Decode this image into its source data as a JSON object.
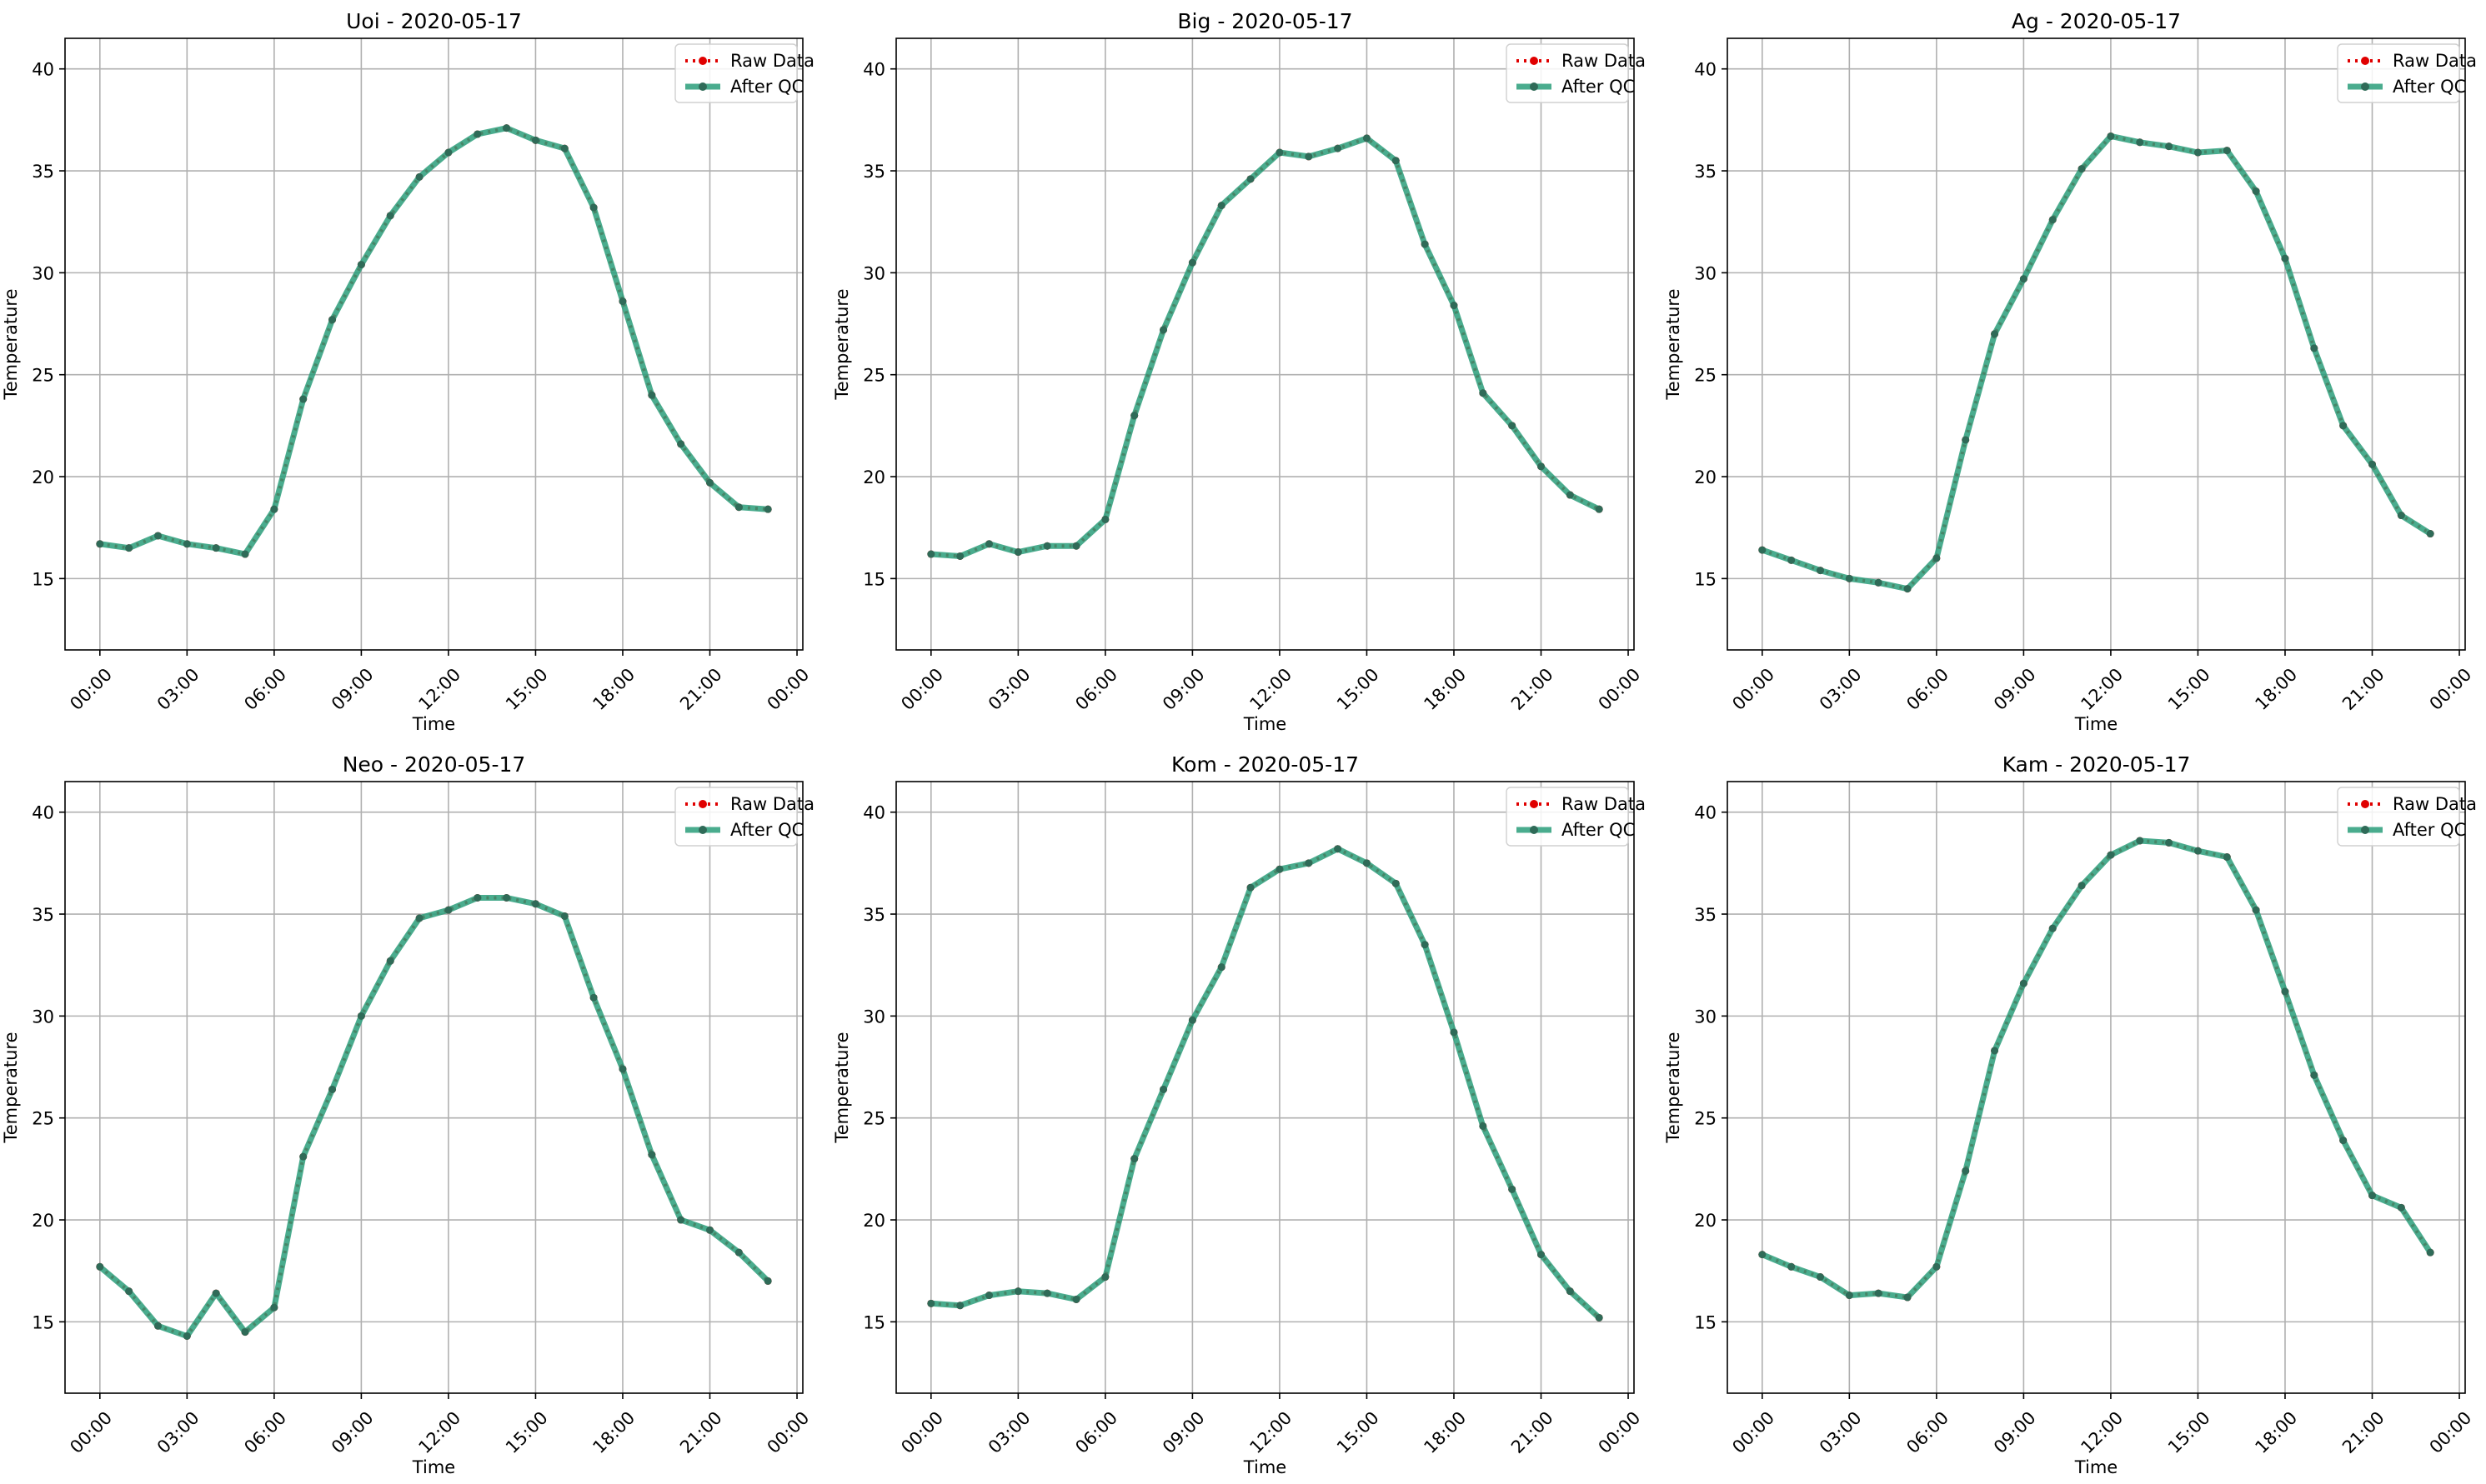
{
  "chart_data": [
    {
      "type": "line",
      "title": "Uoi - 2020-05-17",
      "xlabel": "Time",
      "ylabel": "Temperature",
      "x_ticks": [
        "00:00",
        "03:00",
        "06:00",
        "09:00",
        "12:00",
        "15:00",
        "18:00",
        "21:00",
        "00:00"
      ],
      "y_ticks": [
        15,
        20,
        25,
        30,
        35,
        40
      ],
      "ylim": [
        11.5,
        41.5
      ],
      "xlim_hours": [
        -1.2,
        24.2
      ],
      "grid": true,
      "legend_position": "top-right",
      "hours": [
        0,
        1,
        2,
        3,
        4,
        5,
        6,
        7,
        8,
        9,
        10,
        11,
        12,
        13,
        14,
        15,
        16,
        17,
        18,
        19,
        20,
        21,
        22,
        23
      ],
      "series": [
        {
          "name": "Raw Data",
          "color": "#e00000",
          "values": [
            16.7,
            16.5,
            17.1,
            16.7,
            16.5,
            16.2,
            18.4,
            23.8,
            27.7,
            30.4,
            32.8,
            34.7,
            35.9,
            36.8,
            37.1,
            36.5,
            36.1,
            33.2,
            28.6,
            24.0,
            21.6,
            19.7,
            18.5,
            18.4
          ]
        },
        {
          "name": "After QC",
          "color": "#2a9d7a",
          "values": [
            16.7,
            16.5,
            17.1,
            16.7,
            16.5,
            16.2,
            18.4,
            23.8,
            27.7,
            30.4,
            32.8,
            34.7,
            35.9,
            36.8,
            37.1,
            36.5,
            36.1,
            33.2,
            28.6,
            24.0,
            21.6,
            19.7,
            18.5,
            18.4
          ]
        }
      ]
    },
    {
      "type": "line",
      "title": "Big - 2020-05-17",
      "xlabel": "Time",
      "ylabel": "Temperature",
      "x_ticks": [
        "00:00",
        "03:00",
        "06:00",
        "09:00",
        "12:00",
        "15:00",
        "18:00",
        "21:00",
        "00:00"
      ],
      "y_ticks": [
        15,
        20,
        25,
        30,
        35,
        40
      ],
      "ylim": [
        11.5,
        41.5
      ],
      "xlim_hours": [
        -1.2,
        24.2
      ],
      "grid": true,
      "legend_position": "top-right",
      "hours": [
        0,
        1,
        2,
        3,
        4,
        5,
        6,
        7,
        8,
        9,
        10,
        11,
        12,
        13,
        14,
        15,
        16,
        17,
        18,
        19,
        20,
        21,
        22,
        23
      ],
      "series": [
        {
          "name": "Raw Data",
          "color": "#e00000",
          "values": [
            16.2,
            16.1,
            16.7,
            16.3,
            16.6,
            16.6,
            17.9,
            23.0,
            27.2,
            30.5,
            33.3,
            34.6,
            35.9,
            35.7,
            36.1,
            36.6,
            35.5,
            31.4,
            28.4,
            24.1,
            22.5,
            20.5,
            19.1,
            18.4
          ]
        },
        {
          "name": "After QC",
          "color": "#2a9d7a",
          "values": [
            16.2,
            16.1,
            16.7,
            16.3,
            16.6,
            16.6,
            17.9,
            23.0,
            27.2,
            30.5,
            33.3,
            34.6,
            35.9,
            35.7,
            36.1,
            36.6,
            35.5,
            31.4,
            28.4,
            24.1,
            22.5,
            20.5,
            19.1,
            18.4
          ]
        }
      ]
    },
    {
      "type": "line",
      "title": "Ag - 2020-05-17",
      "xlabel": "Time",
      "ylabel": "Temperature",
      "x_ticks": [
        "00:00",
        "03:00",
        "06:00",
        "09:00",
        "12:00",
        "15:00",
        "18:00",
        "21:00",
        "00:00"
      ],
      "y_ticks": [
        15,
        20,
        25,
        30,
        35,
        40
      ],
      "ylim": [
        11.5,
        41.5
      ],
      "xlim_hours": [
        -1.2,
        24.2
      ],
      "grid": true,
      "legend_position": "top-right",
      "hours": [
        0,
        1,
        2,
        3,
        4,
        5,
        6,
        7,
        8,
        9,
        10,
        11,
        12,
        13,
        14,
        15,
        16,
        17,
        18,
        19,
        20,
        21,
        22,
        23
      ],
      "series": [
        {
          "name": "Raw Data",
          "color": "#e00000",
          "values": [
            16.4,
            15.9,
            15.4,
            15.0,
            14.8,
            14.5,
            16.0,
            21.8,
            27.0,
            29.7,
            32.6,
            35.1,
            36.7,
            36.4,
            36.2,
            35.9,
            36.0,
            34.0,
            30.7,
            26.3,
            22.5,
            20.6,
            18.1,
            17.2
          ]
        },
        {
          "name": "After QC",
          "color": "#2a9d7a",
          "values": [
            16.4,
            15.9,
            15.4,
            15.0,
            14.8,
            14.5,
            16.0,
            21.8,
            27.0,
            29.7,
            32.6,
            35.1,
            36.7,
            36.4,
            36.2,
            35.9,
            36.0,
            34.0,
            30.7,
            26.3,
            22.5,
            20.6,
            18.1,
            17.2
          ]
        }
      ]
    },
    {
      "type": "line",
      "title": "Neo - 2020-05-17",
      "xlabel": "Time",
      "ylabel": "Temperature",
      "x_ticks": [
        "00:00",
        "03:00",
        "06:00",
        "09:00",
        "12:00",
        "15:00",
        "18:00",
        "21:00",
        "00:00"
      ],
      "y_ticks": [
        15,
        20,
        25,
        30,
        35,
        40
      ],
      "ylim": [
        11.5,
        41.5
      ],
      "xlim_hours": [
        -1.2,
        24.2
      ],
      "grid": true,
      "legend_position": "top-right",
      "hours": [
        0,
        1,
        2,
        3,
        4,
        5,
        6,
        7,
        8,
        9,
        10,
        11,
        12,
        13,
        14,
        15,
        16,
        17,
        18,
        19,
        20,
        21,
        22,
        23
      ],
      "series": [
        {
          "name": "Raw Data",
          "color": "#e00000",
          "values": [
            17.7,
            16.5,
            14.8,
            14.3,
            16.4,
            14.5,
            15.7,
            23.1,
            26.4,
            30.0,
            32.7,
            34.8,
            35.2,
            35.8,
            35.8,
            35.5,
            34.9,
            30.9,
            27.4,
            23.2,
            20.0,
            19.5,
            18.4,
            17.0
          ]
        },
        {
          "name": "After QC",
          "color": "#2a9d7a",
          "values": [
            17.7,
            16.5,
            14.8,
            14.3,
            16.4,
            14.5,
            15.7,
            23.1,
            26.4,
            30.0,
            32.7,
            34.8,
            35.2,
            35.8,
            35.8,
            35.5,
            34.9,
            30.9,
            27.4,
            23.2,
            20.0,
            19.5,
            18.4,
            17.0
          ]
        }
      ]
    },
    {
      "type": "line",
      "title": "Kom - 2020-05-17",
      "xlabel": "Time",
      "ylabel": "Temperature",
      "x_ticks": [
        "00:00",
        "03:00",
        "06:00",
        "09:00",
        "12:00",
        "15:00",
        "18:00",
        "21:00",
        "00:00"
      ],
      "y_ticks": [
        15,
        20,
        25,
        30,
        35,
        40
      ],
      "ylim": [
        11.5,
        41.5
      ],
      "xlim_hours": [
        -1.2,
        24.2
      ],
      "grid": true,
      "legend_position": "top-right",
      "hours": [
        0,
        1,
        2,
        3,
        4,
        5,
        6,
        7,
        8,
        9,
        10,
        11,
        12,
        13,
        14,
        15,
        16,
        17,
        18,
        19,
        20,
        21,
        22,
        23
      ],
      "series": [
        {
          "name": "Raw Data",
          "color": "#e00000",
          "values": [
            15.9,
            15.8,
            16.3,
            16.5,
            16.4,
            16.1,
            17.2,
            23.0,
            26.4,
            29.8,
            32.4,
            36.3,
            37.2,
            37.5,
            38.2,
            37.5,
            36.5,
            33.5,
            29.2,
            24.6,
            21.5,
            18.3,
            16.5,
            15.2
          ]
        },
        {
          "name": "After QC",
          "color": "#2a9d7a",
          "values": [
            15.9,
            15.8,
            16.3,
            16.5,
            16.4,
            16.1,
            17.2,
            23.0,
            26.4,
            29.8,
            32.4,
            36.3,
            37.2,
            37.5,
            38.2,
            37.5,
            36.5,
            33.5,
            29.2,
            24.6,
            21.5,
            18.3,
            16.5,
            15.2
          ]
        }
      ]
    },
    {
      "type": "line",
      "title": "Kam - 2020-05-17",
      "xlabel": "Time",
      "ylabel": "Temperature",
      "x_ticks": [
        "00:00",
        "03:00",
        "06:00",
        "09:00",
        "12:00",
        "15:00",
        "18:00",
        "21:00",
        "00:00"
      ],
      "y_ticks": [
        15,
        20,
        25,
        30,
        35,
        40
      ],
      "ylim": [
        11.5,
        41.5
      ],
      "xlim_hours": [
        -1.2,
        24.2
      ],
      "grid": true,
      "legend_position": "top-right",
      "hours": [
        0,
        1,
        2,
        3,
        4,
        5,
        6,
        7,
        8,
        9,
        10,
        11,
        12,
        13,
        14,
        15,
        16,
        17,
        18,
        19,
        20,
        21,
        22,
        23
      ],
      "series": [
        {
          "name": "Raw Data",
          "color": "#e00000",
          "values": [
            18.3,
            17.7,
            17.2,
            16.3,
            16.4,
            16.2,
            17.7,
            22.4,
            28.3,
            31.6,
            34.3,
            36.4,
            37.9,
            38.6,
            38.5,
            38.1,
            37.8,
            35.2,
            31.2,
            27.1,
            23.9,
            21.2,
            20.6,
            18.4
          ]
        },
        {
          "name": "After QC",
          "color": "#2a9d7a",
          "values": [
            18.3,
            17.7,
            17.2,
            16.3,
            16.4,
            16.2,
            17.7,
            22.4,
            28.3,
            31.6,
            34.3,
            36.4,
            37.9,
            38.6,
            38.5,
            38.1,
            37.8,
            35.2,
            31.2,
            27.1,
            23.9,
            21.2,
            20.6,
            18.4
          ]
        }
      ]
    }
  ]
}
